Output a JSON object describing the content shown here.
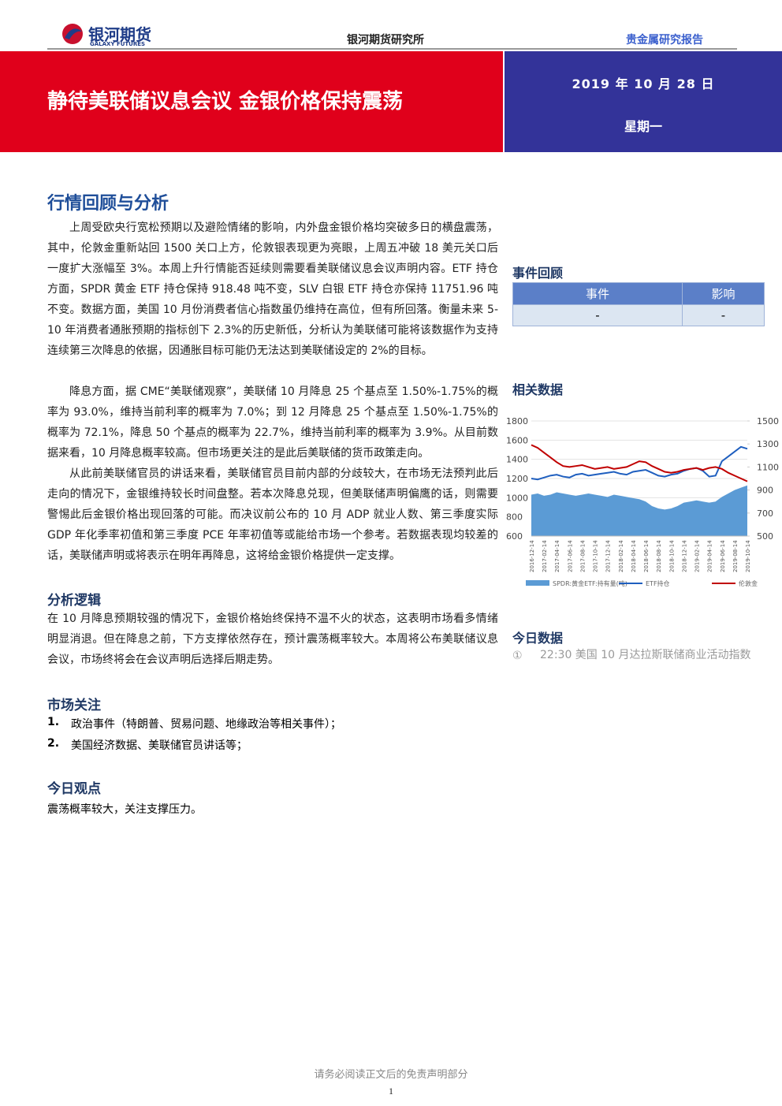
{
  "header": {
    "logo_cn": "银河期货",
    "logo_en": "GALAXY FUTURES",
    "institute": "银河期货研究所",
    "report_type": "贵金属研究报告"
  },
  "banner": {
    "title": "静待美联储议息会议 金银价格保持震荡",
    "date": "2019 年 10 月 28 日",
    "weekday": "星期一"
  },
  "main": {
    "title": "行情回顾与分析",
    "paragraphs": [
      "上周受欧央行宽松预期以及避险情绪的影响，内外盘金银价格均突破多日的横盘震荡，其中，伦敦金重新站回 1500 关口上方，伦敦银表现更为亮眼，上周五冲破 18 美元关口后一度扩大涨幅至 3%。本周上升行情能否延续则需要看美联储议息会议声明内容。ETF 持仓方面，SPDR 黄金 ETF 持仓保持 918.48 吨不变，SLV 白银 ETF 持仓亦保持 11751.96 吨不变。数据方面，美国 10 月份消费者信心指数虽仍维持在高位，但有所回落。衡量未来 5-10 年消费者通胀预期的指标创下 2.3%的历史新低，分析认为美联储可能将该数据作为支持连续第三次降息的依据，因通胀目标可能仍无法达到美联储设定的 2%的目标。",
      "降息方面，据 CME“美联储观察”，美联储 10 月降息 25 个基点至 1.50%-1.75%的概率为 93.0%，维持当前利率的概率为 7.0%；到 12 月降息 25 个基点至 1.50%-1.75%的概率为 72.1%，降息 50 个基点的概率为 22.7%，维持当前利率的概率为 3.9%。从目前数据来看，10 月降息概率较高。但市场更关注的是此后美联储的货币政策走向。",
      "从此前美联储官员的讲话来看，美联储官员目前内部的分歧较大，在市场无法预判此后走向的情况下，金银维持较长时间盘整。若本次降息兑现，但美联储声明偏鹰的话，则需要警惕此后金银价格出现回落的可能。而决议前公布的 10 月 ADP 就业人数、第三季度实际 GDP 年化季率初值和第三季度 PCE 年率初值等或能给市场一个参考。若数据表现均较差的话，美联储声明或将表示在明年再降息，这将给金银价格提供一定支撑。"
    ]
  },
  "logic": {
    "title": "分析逻辑",
    "text": "在 10 月降息预期较强的情况下，金银价格始终保持不温不火的状态，这表明市场看多情绪明显消退。但在降息之前，下方支撑依然存在，预计震荡概率较大。本周将公布美联储议息会议，市场终将会在会议声明后选择后期走势。"
  },
  "focus": {
    "title": "市场关注",
    "items": [
      [
        "1.",
        "政治事件（特朗普、贸易问题、地缘政治等相关事件）；"
      ],
      [
        "2.",
        "美国经济数据、美联储官员讲话等；"
      ]
    ]
  },
  "view": {
    "title": "今日观点",
    "text": "震荡概率较大，关注支撑压力。"
  },
  "events": {
    "title": "事件回顾",
    "columns": [
      "事件",
      "影响"
    ],
    "rows": [
      [
        "-",
        "-"
      ]
    ]
  },
  "related": {
    "title": "相关数据"
  },
  "chart_data": {
    "type": "line",
    "categories": [
      "2016-12-14",
      null,
      "2017-02-14",
      null,
      "2017-04-14",
      null,
      "2017-06-14",
      null,
      "2017-08-14",
      null,
      "2017-10-14",
      null,
      "2017-12-14",
      null,
      "2018-02-14",
      null,
      "2018-04-14",
      null,
      "2018-06-14",
      null,
      "2018-08-14",
      null,
      "2018-10-14",
      null,
      "2018-12-14",
      null,
      "2019-02-14",
      null,
      "2019-04-14",
      null,
      "2019-06-14",
      null,
      "2019-08-14",
      null,
      "2019-10-14"
    ],
    "ylim": [
      600,
      1800
    ],
    "yticks": [
      600,
      800,
      1000,
      1200,
      1400,
      1600,
      1800
    ],
    "y2lim": [
      500,
      1500
    ],
    "y2ticks": [
      500,
      700,
      900,
      1100,
      1300,
      1500
    ],
    "grid": true,
    "series": [
      {
        "name": "SPDR:黄金ETF:持有量(吨)",
        "type": "area",
        "axis": "y2",
        "color": "#5b9bd5",
        "values": [
          860,
          870,
          850,
          860,
          880,
          870,
          860,
          850,
          860,
          870,
          860,
          850,
          840,
          860,
          850,
          840,
          830,
          820,
          800,
          760,
          740,
          730,
          740,
          760,
          790,
          800,
          810,
          800,
          790,
          800,
          840,
          870,
          900,
          920,
          940
        ]
      },
      {
        "name": "ETF持仓",
        "type": "line",
        "color": "#1f5fbf",
        "values": [
          1200,
          1190,
          1210,
          1230,
          1240,
          1220,
          1210,
          1240,
          1250,
          1230,
          1240,
          1250,
          1260,
          1270,
          1250,
          1240,
          1270,
          1280,
          1290,
          1260,
          1230,
          1220,
          1240,
          1250,
          1280,
          1300,
          1310,
          1280,
          1220,
          1230,
          1380,
          1430,
          1480,
          1530,
          1510
        ]
      },
      {
        "name": "伦敦金",
        "type": "line",
        "color": "#c00000",
        "values": [
          1550,
          1520,
          1470,
          1420,
          1370,
          1330,
          1320,
          1330,
          1340,
          1320,
          1300,
          1310,
          1320,
          1300,
          1310,
          1320,
          1350,
          1380,
          1370,
          1330,
          1300,
          1270,
          1260,
          1270,
          1290,
          1300,
          1310,
          1290,
          1310,
          1320,
          1300,
          1260,
          1230,
          1200,
          1170
        ]
      }
    ]
  },
  "today": {
    "title": "今日数据",
    "items": [
      {
        "mark": "①",
        "text": "22:30 美国 10 月达拉斯联储商业活动指数"
      }
    ]
  },
  "footer": {
    "disclaimer": "请务必阅读正文后的免责声明部分",
    "page": "1"
  }
}
